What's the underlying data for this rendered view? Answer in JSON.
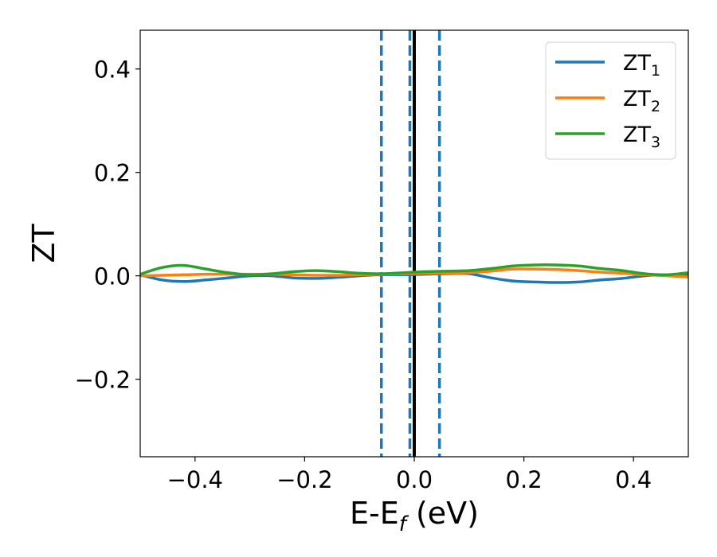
{
  "chart_data": {
    "type": "line",
    "xlabel": "E-E",
    "xlabel_sub": "f",
    "xlabel_unit": " (eV)",
    "ylabel": "ZT",
    "xlim": [
      -0.5,
      0.5
    ],
    "ylim": [
      -0.35,
      0.475
    ],
    "xticks": [
      -0.4,
      -0.2,
      0.0,
      0.2,
      0.4
    ],
    "xtick_labels": [
      "−0.4",
      "−0.2",
      "0.0",
      "0.2",
      "0.4"
    ],
    "yticks": [
      -0.2,
      0.0,
      0.2,
      0.4
    ],
    "ytick_labels": [
      "−0.2",
      "0.0",
      "0.2",
      "0.4"
    ],
    "grid": false,
    "legend_placement": "top-right",
    "vlines": [
      {
        "x": -0.06,
        "style": "dashed",
        "color": "#1f77b4"
      },
      {
        "x": -0.008,
        "style": "dashed",
        "color": "#1f77b4"
      },
      {
        "x": 0.046,
        "style": "dashed",
        "color": "#1f77b4"
      },
      {
        "x": 0.0,
        "style": "solid",
        "color": "#000000"
      }
    ],
    "series": [
      {
        "name": "ZT",
        "name_sub": "1",
        "color": "#1f77b4",
        "x": [
          -0.5,
          -0.46,
          -0.42,
          -0.38,
          -0.34,
          -0.3,
          -0.26,
          -0.22,
          -0.18,
          -0.14,
          -0.1,
          -0.06,
          -0.02,
          0.02,
          0.06,
          0.1,
          0.14,
          0.18,
          0.22,
          0.26,
          0.3,
          0.34,
          0.38,
          0.42,
          0.46,
          0.5
        ],
        "values": [
          0.002,
          -0.008,
          -0.011,
          -0.008,
          -0.004,
          0.0,
          0.0,
          -0.004,
          -0.005,
          -0.003,
          0.0,
          0.002,
          0.002,
          0.003,
          0.004,
          0.004,
          -0.004,
          -0.01,
          -0.012,
          -0.013,
          -0.012,
          -0.008,
          -0.005,
          0.0,
          0.002,
          0.002
        ]
      },
      {
        "name": "ZT",
        "name_sub": "2",
        "color": "#ff7f0e",
        "x": [
          -0.5,
          -0.46,
          -0.42,
          -0.38,
          -0.34,
          -0.3,
          -0.26,
          -0.22,
          -0.18,
          -0.14,
          -0.1,
          -0.06,
          -0.02,
          0.02,
          0.06,
          0.1,
          0.14,
          0.18,
          0.22,
          0.26,
          0.3,
          0.34,
          0.38,
          0.42,
          0.46,
          0.5
        ],
        "values": [
          0.0,
          0.001,
          0.002,
          0.003,
          0.003,
          0.003,
          0.003,
          0.002,
          0.001,
          0.001,
          0.002,
          0.003,
          0.004,
          0.005,
          0.005,
          0.006,
          0.009,
          0.013,
          0.013,
          0.012,
          0.01,
          0.007,
          0.005,
          0.002,
          0.0,
          -0.002
        ]
      },
      {
        "name": "ZT",
        "name_sub": "3",
        "color": "#2ca02c",
        "x": [
          -0.5,
          -0.46,
          -0.42,
          -0.38,
          -0.34,
          -0.3,
          -0.26,
          -0.22,
          -0.18,
          -0.14,
          -0.1,
          -0.06,
          -0.02,
          0.02,
          0.06,
          0.1,
          0.14,
          0.18,
          0.22,
          0.26,
          0.3,
          0.34,
          0.38,
          0.42,
          0.46,
          0.5
        ],
        "values": [
          0.003,
          0.016,
          0.02,
          0.013,
          0.006,
          0.002,
          0.004,
          0.008,
          0.01,
          0.008,
          0.005,
          0.004,
          0.006,
          0.008,
          0.009,
          0.01,
          0.014,
          0.019,
          0.021,
          0.021,
          0.019,
          0.014,
          0.01,
          0.004,
          0.002,
          0.006
        ]
      }
    ]
  }
}
